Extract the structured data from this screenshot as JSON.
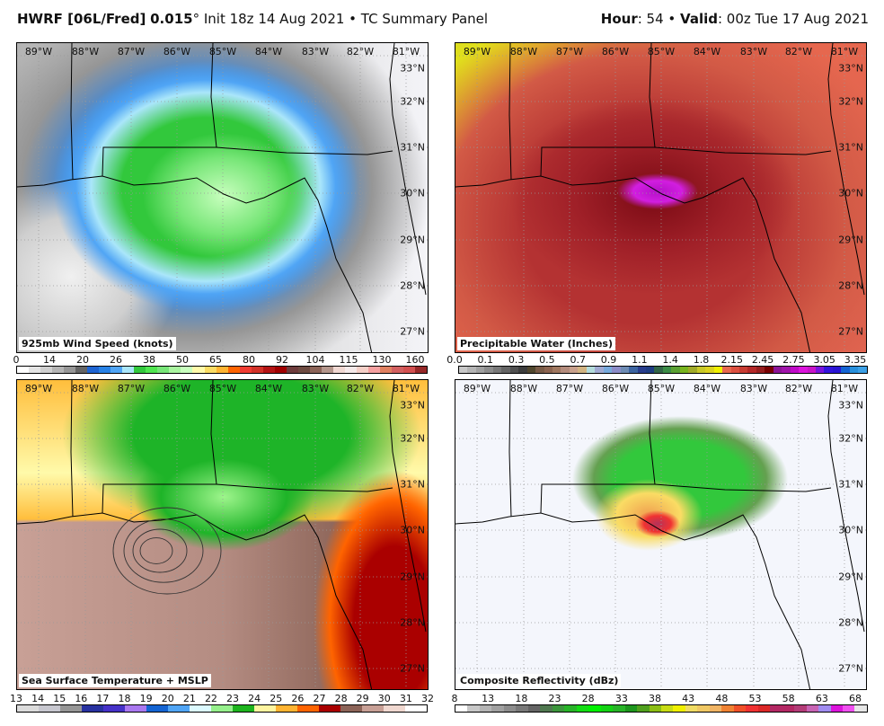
{
  "header": {
    "model": "HWRF [06L/Fred]",
    "res": "0.015",
    "deg": "°",
    "init": " Init 18z 14 Aug 2021 • TC Summary Panel",
    "hour_label": "Hour",
    "hour": ": 54 • ",
    "valid_label": "Valid",
    "valid": ": 00z Tue 17 Aug 2021"
  },
  "lon_labels": [
    "89°W",
    "88°W",
    "87°W",
    "86°W",
    "85°W",
    "84°W",
    "83°W",
    "82°W",
    "81°W"
  ],
  "lat_labels": [
    "33°N",
    "32°N",
    "31°N",
    "30°N",
    "29°N",
    "28°N",
    "27°N"
  ],
  "panels": [
    {
      "title": "925mb Wind Speed (knots)",
      "ticks": [
        "0",
        "14",
        "20",
        "26",
        "38",
        "50",
        "65",
        "80",
        "92",
        "104",
        "115",
        "130",
        "160"
      ],
      "colors": [
        "#ffffff",
        "#e4e4e4",
        "#cfcfcf",
        "#b4b4b4",
        "#969696",
        "#646464",
        "#1e64d2",
        "#2882e6",
        "#50a5f5",
        "#aae6fa",
        "#32c83c",
        "#50e650",
        "#78e678",
        "#aaf5a0",
        "#c8ffbe",
        "#fffaaa",
        "#fadc64",
        "#ffb432",
        "#ff6400",
        "#f03c32",
        "#d23228",
        "#b41414",
        "#a00000",
        "#6e3c3c",
        "#6e4b41",
        "#8c6458",
        "#b4968c",
        "#f0d8d2",
        "#f5eaea",
        "#f5d0c8",
        "#f5a0a0",
        "#e08060",
        "#d26060",
        "#d25050",
        "#962828"
      ]
    },
    {
      "title": "Precipitable Water (Inches)",
      "ticks": [
        "0.0",
        "0.1",
        "0.3",
        "0.5",
        "0.7",
        "0.9",
        "1.1",
        "1.4",
        "1.8",
        "2.15",
        "2.45",
        "2.75",
        "3.05",
        "3.35"
      ],
      "colors": [
        "#c8c8c8",
        "#b4b4b4",
        "#a0a0a0",
        "#8c8c8c",
        "#787878",
        "#646464",
        "#505050",
        "#3c3c3c",
        "#50462d",
        "#785a46",
        "#8c6450",
        "#a07860",
        "#b48c7d",
        "#c8a08c",
        "#d2b482",
        "#b4dcdc",
        "#a0aad2",
        "#78aadc",
        "#8c8cc8",
        "#6e8cb4",
        "#3c64a0",
        "#283c8c",
        "#1e3c82",
        "#326446",
        "#3c8c46",
        "#5aa032",
        "#78b41e",
        "#a0aa28",
        "#c8c828",
        "#dcd21e",
        "#f0f000",
        "#e8684e",
        "#dc5040",
        "#c83c32",
        "#b42828",
        "#961e1e",
        "#780000",
        "#8c1496",
        "#a014aa",
        "#c00ac8",
        "#dc14dc",
        "#c814c8",
        "#7814dc",
        "#3214dc",
        "#2814d2",
        "#1464d2",
        "#2890dc",
        "#3ca0e6"
      ]
    },
    {
      "title": "Sea Surface Temperature + MSLP",
      "ticks": [
        "13",
        "14",
        "15",
        "16",
        "17",
        "18",
        "19",
        "20",
        "21",
        "22",
        "23",
        "24",
        "25",
        "26",
        "27",
        "28",
        "29",
        "30",
        "31",
        "32"
      ],
      "colors": [
        "#dcdcdc",
        "#c8c8d0",
        "#969696",
        "#2832a0",
        "#4632c8",
        "#aa78f0",
        "#1464d2",
        "#50a5f5",
        "#dcfaff",
        "#96f08c",
        "#1eb41e",
        "#fff5a0",
        "#ffb432",
        "#ff6400",
        "#aa0000",
        "#8c6458",
        "#c8a096",
        "#f0d8d0",
        "#ffffff"
      ]
    },
    {
      "title": "Composite Reflectivity (dBz)",
      "ticks": [
        "8",
        "13",
        "18",
        "23",
        "28",
        "33",
        "38",
        "43",
        "48",
        "53",
        "58",
        "63",
        "68"
      ],
      "colors": [
        "#ffffff",
        "#c8c8c8",
        "#b4b4b4",
        "#a0a0a0",
        "#8c8c8c",
        "#787878",
        "#646464",
        "#507850",
        "#3c963c",
        "#28b428",
        "#14dc14",
        "#00f000",
        "#14d214",
        "#28b428",
        "#1e961e",
        "#50a01e",
        "#8cbe14",
        "#c8dc14",
        "#f0f000",
        "#f0dc64",
        "#f0c864",
        "#f0b464",
        "#f08232",
        "#f05028",
        "#f03232",
        "#dc2828",
        "#b42864",
        "#b42864",
        "#b43c78",
        "#c864b4",
        "#a08cf0",
        "#dc14dc",
        "#f050f0",
        "#e6e6e6"
      ]
    }
  ]
}
